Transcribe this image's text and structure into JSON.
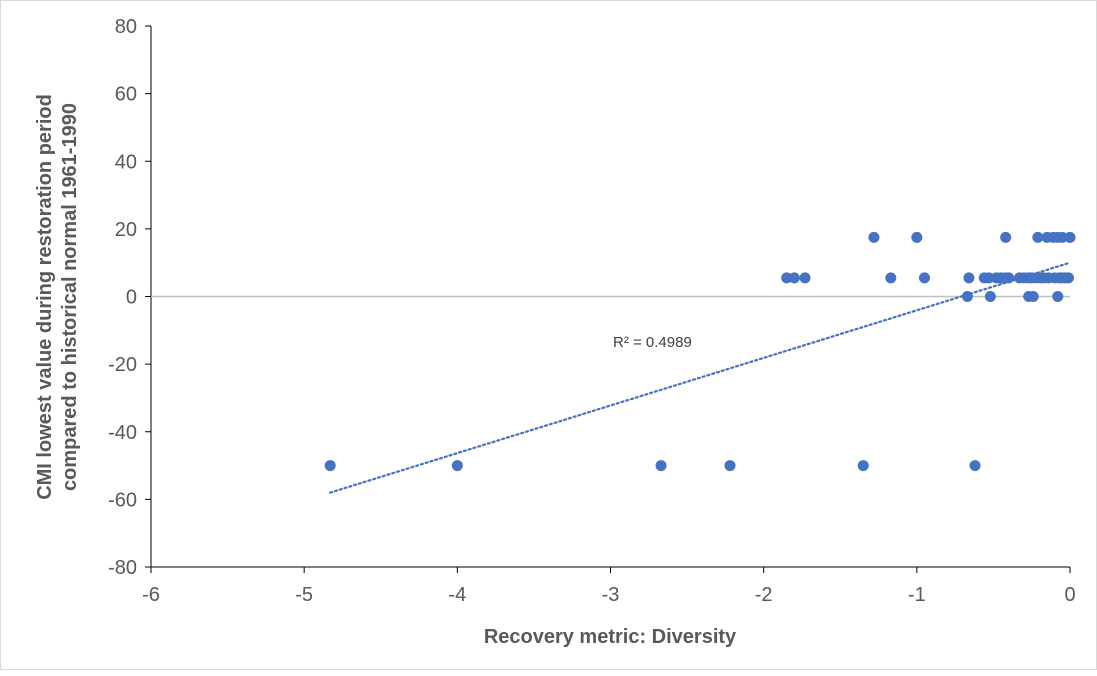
{
  "chart_data": {
    "type": "scatter",
    "title": "",
    "xlabel": "Recovery metric: Diversity",
    "ylabel_lines": [
      "CMI lowest value during restoration period",
      "compared to historical normal 1961-1990"
    ],
    "xlim": [
      -6,
      0
    ],
    "ylim": [
      -80,
      80
    ],
    "x_ticks": [
      -6,
      -5,
      -4,
      -3,
      -2,
      -1,
      0
    ],
    "y_ticks": [
      80,
      60,
      40,
      20,
      0,
      -20,
      -40,
      -60,
      -80
    ],
    "grid": false,
    "legend": "none",
    "marker_color": "#4472C4",
    "trendline": {
      "type": "linear",
      "style": "dotted",
      "color": "#4472C4",
      "x_range": [
        -4.83,
        0
      ],
      "y_range": [
        -58,
        10
      ],
      "label": "R² = 0.4989"
    },
    "points": [
      {
        "x": -4.83,
        "y": -50
      },
      {
        "x": -4.0,
        "y": -50
      },
      {
        "x": -2.67,
        "y": -50
      },
      {
        "x": -2.22,
        "y": -50
      },
      {
        "x": -1.35,
        "y": -50
      },
      {
        "x": -0.62,
        "y": -50
      },
      {
        "x": -1.28,
        "y": 17.5
      },
      {
        "x": -1.0,
        "y": 17.5
      },
      {
        "x": -0.42,
        "y": 17.5
      },
      {
        "x": -0.21,
        "y": 17.5
      },
      {
        "x": -0.15,
        "y": 17.5
      },
      {
        "x": -0.11,
        "y": 17.5
      },
      {
        "x": -0.08,
        "y": 17.5
      },
      {
        "x": -0.05,
        "y": 17.5
      },
      {
        "x": 0.0,
        "y": 17.5
      },
      {
        "x": -1.85,
        "y": 5.5
      },
      {
        "x": -1.8,
        "y": 5.5
      },
      {
        "x": -1.73,
        "y": 5.5
      },
      {
        "x": -1.17,
        "y": 5.5
      },
      {
        "x": -0.95,
        "y": 5.5
      },
      {
        "x": -0.66,
        "y": 5.5
      },
      {
        "x": -0.56,
        "y": 5.5
      },
      {
        "x": -0.53,
        "y": 5.5
      },
      {
        "x": -0.48,
        "y": 5.5
      },
      {
        "x": -0.45,
        "y": 5.5
      },
      {
        "x": -0.42,
        "y": 5.5
      },
      {
        "x": -0.4,
        "y": 5.5
      },
      {
        "x": -0.33,
        "y": 5.5
      },
      {
        "x": -0.3,
        "y": 5.5
      },
      {
        "x": -0.27,
        "y": 5.5
      },
      {
        "x": -0.25,
        "y": 5.5
      },
      {
        "x": -0.22,
        "y": 5.5
      },
      {
        "x": -0.19,
        "y": 5.5
      },
      {
        "x": -0.17,
        "y": 5.5
      },
      {
        "x": -0.14,
        "y": 5.5
      },
      {
        "x": -0.1,
        "y": 5.5
      },
      {
        "x": -0.07,
        "y": 5.5
      },
      {
        "x": -0.05,
        "y": 5.5
      },
      {
        "x": -0.03,
        "y": 5.5
      },
      {
        "x": -0.01,
        "y": 5.5
      },
      {
        "x": -0.67,
        "y": 0
      },
      {
        "x": -0.52,
        "y": 0
      },
      {
        "x": -0.27,
        "y": 0
      },
      {
        "x": -0.24,
        "y": 0
      },
      {
        "x": -0.08,
        "y": 0
      }
    ]
  }
}
